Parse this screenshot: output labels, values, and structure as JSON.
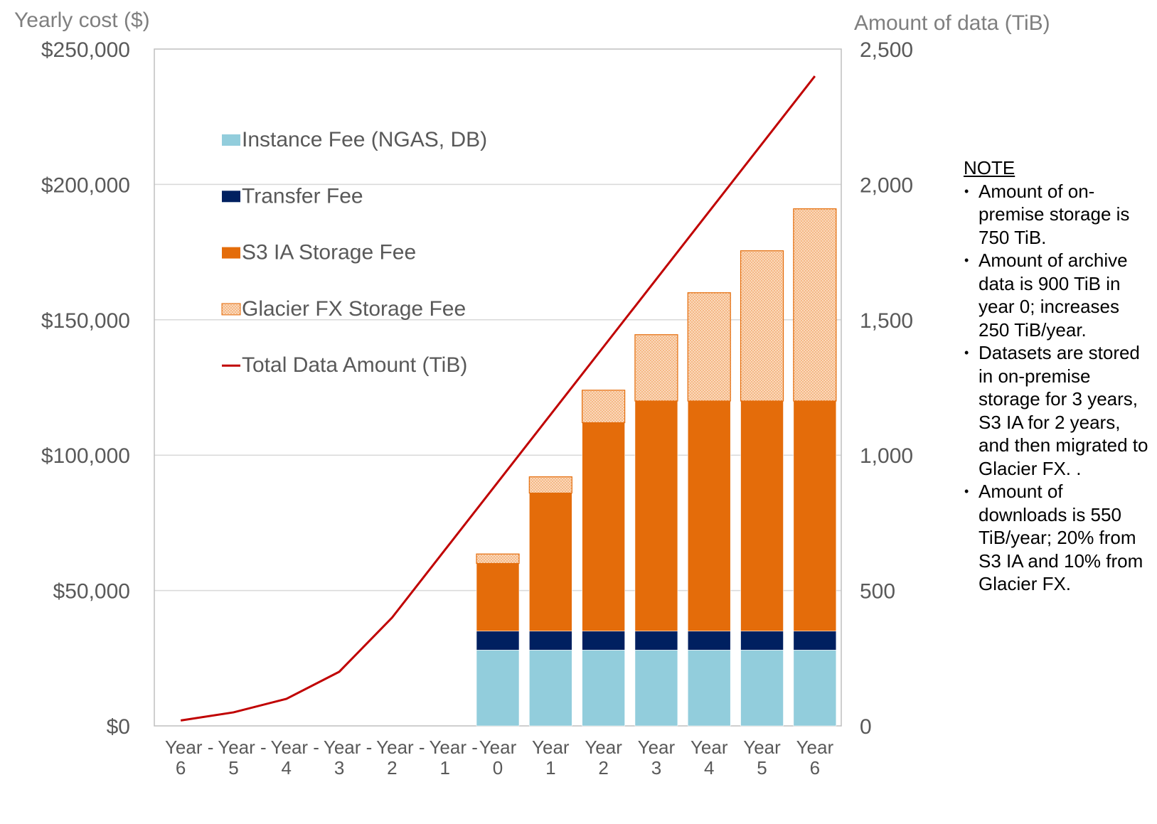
{
  "chart_data": {
    "type": "bar",
    "stacked": true,
    "y_axis_title": "Yearly cost ($)",
    "y2_axis_title": "Amount of data (TiB)",
    "ylim": [
      0,
      250000
    ],
    "y_ticks": [
      "$0",
      "$50,000",
      "$100,000",
      "$150,000",
      "$200,000",
      "$250,000"
    ],
    "y_tick_values": [
      0,
      50000,
      100000,
      150000,
      200000,
      250000
    ],
    "y2lim": [
      0,
      2500
    ],
    "y2_ticks": [
      "0",
      "500",
      "1,000",
      "1,500",
      "2,000",
      "2,500"
    ],
    "y2_tick_values": [
      0,
      500,
      1000,
      1500,
      2000,
      2500
    ],
    "categories": [
      [
        "Year -",
        "6"
      ],
      [
        "Year -",
        "5"
      ],
      [
        "Year -",
        "4"
      ],
      [
        "Year -",
        "3"
      ],
      [
        "Year -",
        "2"
      ],
      [
        "Year -",
        "1"
      ],
      [
        "Year",
        "0"
      ],
      [
        "Year",
        "1"
      ],
      [
        "Year",
        "2"
      ],
      [
        "Year",
        "3"
      ],
      [
        "Year",
        "4"
      ],
      [
        "Year",
        "5"
      ],
      [
        "Year",
        "6"
      ]
    ],
    "series": [
      {
        "name": "Instance Fee (NGAS, DB)",
        "kind": "bar",
        "color": "#92cddc",
        "values": [
          null,
          null,
          null,
          null,
          null,
          null,
          28000,
          28000,
          28000,
          28000,
          28000,
          28000,
          28000
        ]
      },
      {
        "name": "Transfer Fee",
        "kind": "bar",
        "color": "#002060",
        "values": [
          null,
          null,
          null,
          null,
          null,
          null,
          7000,
          7000,
          7000,
          7000,
          7000,
          7000,
          7000
        ]
      },
      {
        "name": "S3 IA Storage Fee",
        "kind": "bar",
        "color": "#e46c0a",
        "values": [
          null,
          null,
          null,
          null,
          null,
          null,
          25000,
          51000,
          77000,
          85000,
          85000,
          85000,
          85000
        ]
      },
      {
        "name": "Glacier FX Storage Fee",
        "kind": "bar",
        "color": "#fac090",
        "pattern": "dotted",
        "values": [
          null,
          null,
          null,
          null,
          null,
          null,
          3500,
          6000,
          12000,
          24500,
          40000,
          55500,
          71000
        ]
      },
      {
        "name": "Total Data Amount (TiB)",
        "kind": "line",
        "axis": "right",
        "color": "#c00000",
        "values": [
          20,
          50,
          100,
          200,
          400,
          650,
          900,
          1150,
          1400,
          1650,
          1900,
          2150,
          2400
        ]
      }
    ],
    "legend_position": "inside top-left",
    "grid": true
  },
  "note": {
    "title": "NOTE",
    "items": [
      "Amount of on-premise storage is 750 TiB.",
      "Amount of archive data is 900 TiB in year 0; increases 250 TiB/year.",
      "Datasets are stored in on-premise storage for 3 years, S3 IA for 2 years, and then migrated to Glacier FX.   .",
      "Amount of downloads is 550 TiB/year; 20% from S3 IA and 10% from Glacier FX."
    ]
  }
}
